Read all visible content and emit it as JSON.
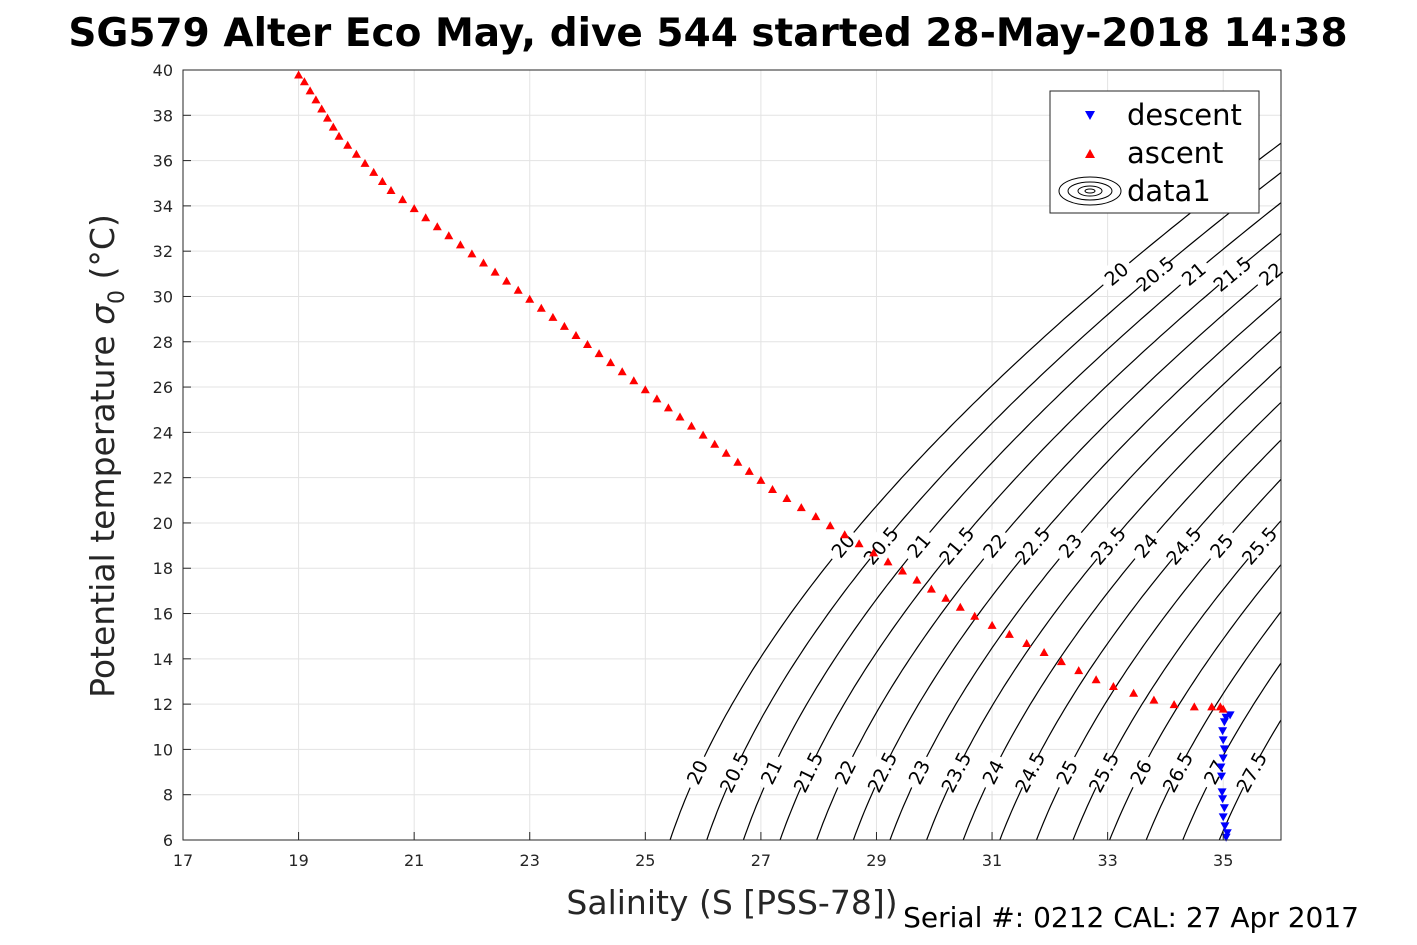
{
  "figure": {
    "title": "SG579 Alter Eco May, dive 544 started 28-May-2018 14:38",
    "footer": "Serial #: 0212  CAL: 27 Apr 2017"
  },
  "chart_data": {
    "type": "scatter",
    "xlabel": "Salinity (S [PSS-78])",
    "ylabel_text": "Potential temperature ",
    "ylabel_symbol": "σ",
    "ylabel_subscript": "0",
    "ylabel_unit": " (°C)",
    "xlim": [
      17,
      36
    ],
    "ylim": [
      6,
      40
    ],
    "x_ticks": [
      17,
      19,
      21,
      23,
      25,
      27,
      29,
      31,
      33,
      35
    ],
    "y_ticks": [
      6,
      8,
      10,
      12,
      14,
      16,
      18,
      20,
      22,
      24,
      26,
      28,
      30,
      32,
      34,
      36,
      38,
      40
    ],
    "grid": true,
    "legend_position": "top-right",
    "legend": [
      {
        "label": "descent",
        "marker": "triangle-down",
        "color": "#0000ff"
      },
      {
        "label": "ascent",
        "marker": "triangle-up",
        "color": "#ff0000"
      },
      {
        "label": "data1",
        "marker": "contour",
        "color": "#000000"
      }
    ],
    "series": [
      {
        "name": "descent",
        "color": "#0000ff",
        "points": [
          [
            35.05,
            6.1
          ],
          [
            35.07,
            6.3
          ],
          [
            35.03,
            6.6
          ],
          [
            35.0,
            7.0
          ],
          [
            35.02,
            7.4
          ],
          [
            34.99,
            7.8
          ],
          [
            34.98,
            8.1
          ],
          [
            34.97,
            8.8
          ],
          [
            34.96,
            9.2
          ],
          [
            35.0,
            9.6
          ],
          [
            35.02,
            10.0
          ],
          [
            35.0,
            10.4
          ],
          [
            34.99,
            10.8
          ],
          [
            35.02,
            11.2
          ],
          [
            35.05,
            11.4
          ],
          [
            35.12,
            11.5
          ]
        ]
      },
      {
        "name": "ascent",
        "color": "#ff0000",
        "points": [
          [
            19.0,
            39.8
          ],
          [
            19.1,
            39.5
          ],
          [
            19.2,
            39.1
          ],
          [
            19.3,
            38.7
          ],
          [
            19.4,
            38.3
          ],
          [
            19.5,
            37.9
          ],
          [
            19.6,
            37.5
          ],
          [
            19.7,
            37.1
          ],
          [
            19.85,
            36.7
          ],
          [
            20.0,
            36.3
          ],
          [
            20.15,
            35.9
          ],
          [
            20.3,
            35.5
          ],
          [
            20.45,
            35.1
          ],
          [
            20.6,
            34.7
          ],
          [
            20.8,
            34.3
          ],
          [
            21.0,
            33.9
          ],
          [
            21.2,
            33.5
          ],
          [
            21.4,
            33.1
          ],
          [
            21.6,
            32.7
          ],
          [
            21.8,
            32.3
          ],
          [
            22.0,
            31.9
          ],
          [
            22.2,
            31.5
          ],
          [
            22.4,
            31.1
          ],
          [
            22.6,
            30.7
          ],
          [
            22.8,
            30.3
          ],
          [
            23.0,
            29.9
          ],
          [
            23.2,
            29.5
          ],
          [
            23.4,
            29.1
          ],
          [
            23.6,
            28.7
          ],
          [
            23.8,
            28.3
          ],
          [
            24.0,
            27.9
          ],
          [
            24.2,
            27.5
          ],
          [
            24.4,
            27.1
          ],
          [
            24.6,
            26.7
          ],
          [
            24.8,
            26.3
          ],
          [
            25.0,
            25.9
          ],
          [
            25.2,
            25.5
          ],
          [
            25.4,
            25.1
          ],
          [
            25.6,
            24.7
          ],
          [
            25.8,
            24.3
          ],
          [
            26.0,
            23.9
          ],
          [
            26.2,
            23.5
          ],
          [
            26.4,
            23.1
          ],
          [
            26.6,
            22.7
          ],
          [
            26.8,
            22.3
          ],
          [
            27.0,
            21.9
          ],
          [
            27.2,
            21.5
          ],
          [
            27.45,
            21.1
          ],
          [
            27.7,
            20.7
          ],
          [
            27.95,
            20.3
          ],
          [
            28.2,
            19.9
          ],
          [
            28.45,
            19.5
          ],
          [
            28.7,
            19.1
          ],
          [
            28.95,
            18.7
          ],
          [
            29.2,
            18.3
          ],
          [
            29.45,
            17.9
          ],
          [
            29.7,
            17.5
          ],
          [
            29.95,
            17.1
          ],
          [
            30.2,
            16.7
          ],
          [
            30.45,
            16.3
          ],
          [
            30.7,
            15.9
          ],
          [
            31.0,
            15.5
          ],
          [
            31.3,
            15.1
          ],
          [
            31.6,
            14.7
          ],
          [
            31.9,
            14.3
          ],
          [
            32.2,
            13.9
          ],
          [
            32.5,
            13.5
          ],
          [
            32.8,
            13.1
          ],
          [
            33.1,
            12.8
          ],
          [
            33.45,
            12.5
          ],
          [
            33.8,
            12.2
          ],
          [
            34.15,
            12.0
          ],
          [
            34.5,
            11.9
          ],
          [
            34.8,
            11.9
          ],
          [
            34.95,
            11.9
          ],
          [
            35.0,
            11.8
          ]
        ]
      }
    ],
    "contours": {
      "name": "data1",
      "levels": [
        20,
        20.5,
        21,
        21.5,
        22,
        22.5,
        23,
        23.5,
        24,
        24.5,
        25,
        25.5,
        26,
        26.5,
        27,
        27.5
      ]
    }
  }
}
